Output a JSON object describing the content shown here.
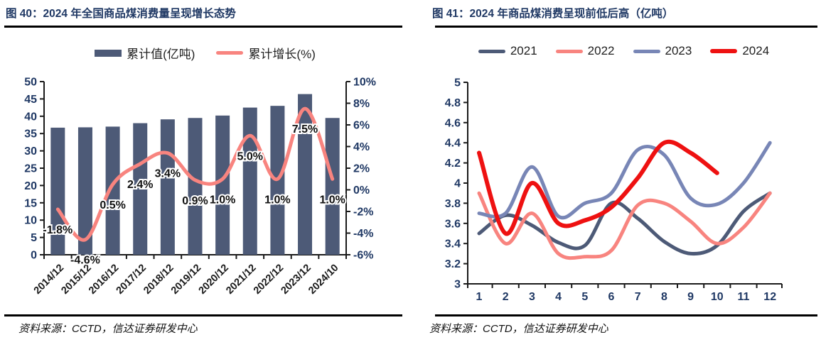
{
  "colors": {
    "title": "#1F3864",
    "axis_label": "#1F3864",
    "axis_line": "#1a1a1a",
    "bar": "#4D5A77",
    "salmon": "#F8847F",
    "navy_2021": "#4D5A77",
    "pink_2022": "#F8847F",
    "blue_2023": "#7886B6",
    "red_2024": "#EE1111"
  },
  "panels": [
    {
      "title": "图 40：2024 年全国商品煤消费量呈现增长态势",
      "source": "资料来源：CCTD，信达证券研发中心"
    },
    {
      "title": "图 41：2024 年商品煤消费呈现前低后高（亿吨）",
      "source": "资料来源：CCTD，信达证券研发中心"
    }
  ],
  "chart_data": [
    {
      "type": "bar",
      "subtype": "bar-plus-line-dual-axis",
      "title": "图 40：2024 年全国商品煤消费量呈现增长态势",
      "categories": [
        "2014/12",
        "2015/12",
        "2016/12",
        "2017/12",
        "2018/12",
        "2019/12",
        "2020/12",
        "2021/12",
        "2022/12",
        "2023/12",
        "2024/10"
      ],
      "series": [
        {
          "name": "累计值(亿吨)",
          "kind": "bar",
          "axis": "left",
          "color_key": "bar",
          "values": [
            36.7,
            36.8,
            37.0,
            38.0,
            39.1,
            39.5,
            40.2,
            42.5,
            43.0,
            46.4,
            39.5
          ]
        },
        {
          "name": "累计增长(%)",
          "kind": "line",
          "axis": "right",
          "color_key": "salmon",
          "values": [
            -1.8,
            -4.6,
            0.5,
            2.4,
            3.4,
            0.9,
            1.0,
            5.0,
            1.0,
            7.5,
            1.0
          ],
          "point_labels": [
            "-1.8%",
            "-4.6%",
            "0.5%",
            "2.4%",
            "3.4%",
            "0.9%",
            "1.0%",
            "5.0%",
            "1.0%",
            "7.5%",
            "1.0%"
          ]
        }
      ],
      "left_axis": {
        "min": 0,
        "max": 50,
        "step": 5,
        "tick_labels": [
          "0",
          "5",
          "10",
          "15",
          "20",
          "25",
          "30",
          "35",
          "40",
          "45",
          "50"
        ]
      },
      "right_axis": {
        "min": -6,
        "max": 10,
        "step": 2,
        "tick_labels": [
          "-6%",
          "-4%",
          "-2%",
          "0%",
          "2%",
          "4%",
          "6%",
          "8%",
          "10%"
        ]
      },
      "legend_position": "top-center",
      "grid": false
    },
    {
      "type": "line",
      "title": "图 41：2024 年商品煤消费呈现前低后高（亿吨）",
      "x_labels": [
        "1",
        "2",
        "3",
        "4",
        "5",
        "6",
        "7",
        "8",
        "9",
        "10",
        "11",
        "12"
      ],
      "series": [
        {
          "name": "2021",
          "color_key": "navy_2021",
          "values": [
            3.5,
            3.68,
            3.58,
            3.41,
            3.38,
            3.8,
            3.65,
            3.42,
            3.3,
            3.38,
            3.72,
            3.9
          ]
        },
        {
          "name": "2022",
          "color_key": "pink_2022",
          "values": [
            3.9,
            3.4,
            3.7,
            3.3,
            3.27,
            3.33,
            3.78,
            3.8,
            3.62,
            3.4,
            3.56,
            3.9
          ]
        },
        {
          "name": "2023",
          "color_key": "blue_2023",
          "values": [
            3.7,
            3.7,
            4.16,
            3.67,
            3.8,
            3.9,
            4.33,
            4.28,
            3.85,
            3.79,
            4.0,
            4.4
          ]
        },
        {
          "name": "2024",
          "color_key": "red_2024",
          "values": [
            4.3,
            3.5,
            4.0,
            3.6,
            3.63,
            3.76,
            4.05,
            4.4,
            4.3,
            4.1
          ]
        }
      ],
      "y_axis": {
        "min": 3,
        "max": 5,
        "step": 0.2,
        "tick_labels": [
          "3",
          "3.2",
          "3.4",
          "3.6",
          "3.8",
          "4",
          "4.2",
          "4.4",
          "4.6",
          "4.8",
          "5"
        ]
      },
      "legend_position": "top-center",
      "grid": false
    }
  ]
}
